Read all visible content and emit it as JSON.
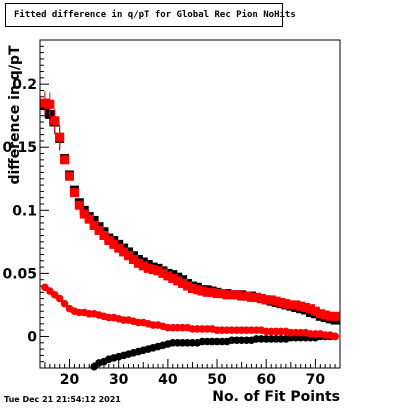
{
  "title": "Fitted difference in q/pT for Global Rec Pion NoHits",
  "timestamp": "Tue Dec 21 21:54:12 2021",
  "chart_data": {
    "type": "scatter",
    "title": "Fitted difference in q/pT for Global Rec Pion NoHits",
    "xlabel": "No. of Fit Points",
    "ylabel": "difference in q/pT",
    "xlim": [
      14,
      75
    ],
    "ylim": [
      -0.025,
      0.235
    ],
    "x_ticks": [
      20,
      30,
      40,
      50,
      60,
      70
    ],
    "y_ticks": [
      0,
      0.05,
      0.1,
      0.15,
      0.2
    ],
    "x_tick_labels": [
      "20",
      "30",
      "40",
      "50",
      "60",
      "70"
    ],
    "y_tick_labels": [
      "0",
      "0.05",
      "0.1",
      "0.15",
      "0.2"
    ],
    "grid": false,
    "series": [
      {
        "color": "#000000",
        "marker": "square",
        "x": [
          15,
          16,
          17,
          18,
          19,
          20,
          21,
          22,
          23,
          24,
          25,
          26,
          27,
          28,
          29,
          30,
          31,
          32,
          33,
          34,
          35,
          36,
          37,
          38,
          39,
          40,
          41,
          42,
          43,
          44,
          45,
          46,
          47,
          48,
          49,
          50,
          51,
          52,
          53,
          54,
          55,
          56,
          57,
          58,
          59,
          60,
          61,
          62,
          63,
          64,
          65,
          66,
          67,
          68,
          69,
          70,
          71,
          72,
          73,
          74
        ],
        "y": [
          0.183,
          0.176,
          0.17,
          0.157,
          0.141,
          0.128,
          0.116,
          0.106,
          0.1,
          0.095,
          0.092,
          0.087,
          0.083,
          0.078,
          0.076,
          0.073,
          0.07,
          0.067,
          0.064,
          0.061,
          0.059,
          0.057,
          0.055,
          0.054,
          0.052,
          0.05,
          0.049,
          0.047,
          0.045,
          0.042,
          0.04,
          0.039,
          0.037,
          0.037,
          0.036,
          0.035,
          0.034,
          0.034,
          0.033,
          0.033,
          0.033,
          0.032,
          0.032,
          0.031,
          0.03,
          0.029,
          0.028,
          0.027,
          0.026,
          0.025,
          0.024,
          0.023,
          0.022,
          0.021,
          0.019,
          0.018,
          0.016,
          0.015,
          0.014,
          0.013
        ]
      },
      {
        "color": "#ff0000",
        "marker": "square",
        "x": [
          15,
          16,
          17,
          18,
          19,
          20,
          21,
          22,
          23,
          24,
          25,
          26,
          27,
          28,
          29,
          30,
          31,
          32,
          33,
          34,
          35,
          36,
          37,
          38,
          39,
          40,
          41,
          42,
          43,
          44,
          45,
          46,
          47,
          48,
          49,
          50,
          51,
          52,
          53,
          54,
          55,
          56,
          57,
          58,
          59,
          60,
          61,
          62,
          63,
          64,
          65,
          66,
          67,
          68,
          69,
          70,
          71,
          72,
          73,
          74
        ],
        "y": [
          0.185,
          0.184,
          0.171,
          0.158,
          0.14,
          0.127,
          0.114,
          0.104,
          0.097,
          0.093,
          0.088,
          0.084,
          0.08,
          0.076,
          0.073,
          0.07,
          0.067,
          0.064,
          0.061,
          0.058,
          0.056,
          0.054,
          0.053,
          0.052,
          0.05,
          0.048,
          0.046,
          0.044,
          0.042,
          0.04,
          0.038,
          0.037,
          0.036,
          0.035,
          0.035,
          0.034,
          0.034,
          0.033,
          0.033,
          0.033,
          0.032,
          0.032,
          0.031,
          0.031,
          0.03,
          0.029,
          0.029,
          0.028,
          0.027,
          0.026,
          0.025,
          0.025,
          0.024,
          0.023,
          0.022,
          0.02,
          0.018,
          0.017,
          0.016,
          0.016
        ]
      },
      {
        "color": "#ff0000",
        "marker": "circle",
        "x": [
          15,
          16,
          17,
          18,
          19,
          20,
          21,
          22,
          23,
          24,
          25,
          26,
          27,
          28,
          29,
          30,
          31,
          32,
          33,
          34,
          35,
          36,
          37,
          38,
          39,
          40,
          41,
          42,
          43,
          44,
          45,
          46,
          47,
          48,
          49,
          50,
          51,
          52,
          53,
          54,
          55,
          56,
          57,
          58,
          59,
          60,
          61,
          62,
          63,
          64,
          65,
          66,
          67,
          68,
          69,
          70,
          71,
          72,
          73,
          74
        ],
        "y": [
          0.039,
          0.036,
          0.033,
          0.03,
          0.026,
          0.022,
          0.02,
          0.019,
          0.019,
          0.018,
          0.018,
          0.017,
          0.016,
          0.015,
          0.015,
          0.014,
          0.013,
          0.013,
          0.012,
          0.011,
          0.011,
          0.01,
          0.009,
          0.009,
          0.008,
          0.007,
          0.007,
          0.007,
          0.007,
          0.007,
          0.006,
          0.006,
          0.006,
          0.006,
          0.006,
          0.005,
          0.005,
          0.005,
          0.005,
          0.005,
          0.005,
          0.005,
          0.005,
          0.005,
          0.005,
          0.004,
          0.004,
          0.004,
          0.004,
          0.004,
          0.003,
          0.003,
          0.003,
          0.003,
          0.002,
          0.002,
          0.002,
          0.001,
          0.001,
          0.0
        ]
      },
      {
        "color": "#000000",
        "marker": "circle",
        "x": [
          25,
          26,
          27,
          28,
          29,
          30,
          31,
          32,
          33,
          34,
          35,
          36,
          37,
          38,
          39,
          40,
          41,
          42,
          43,
          44,
          45,
          46,
          47,
          48,
          49,
          50,
          51,
          52,
          53,
          54,
          55,
          56,
          57,
          58,
          59,
          60,
          61,
          62,
          63,
          64,
          65,
          66,
          67,
          68,
          69,
          70,
          71,
          72,
          73,
          74
        ],
        "y": [
          -0.024,
          -0.021,
          -0.02,
          -0.018,
          -0.017,
          -0.016,
          -0.015,
          -0.014,
          -0.013,
          -0.012,
          -0.011,
          -0.01,
          -0.009,
          -0.008,
          -0.007,
          -0.006,
          -0.005,
          -0.005,
          -0.005,
          -0.005,
          -0.005,
          -0.005,
          -0.004,
          -0.004,
          -0.004,
          -0.004,
          -0.004,
          -0.004,
          -0.003,
          -0.003,
          -0.003,
          -0.003,
          -0.003,
          -0.002,
          -0.002,
          -0.002,
          -0.002,
          -0.002,
          -0.002,
          -0.002,
          -0.001,
          -0.001,
          -0.001,
          -0.001,
          -0.001,
          -0.001,
          0.0,
          0.0,
          0.0,
          0.0
        ]
      }
    ]
  }
}
